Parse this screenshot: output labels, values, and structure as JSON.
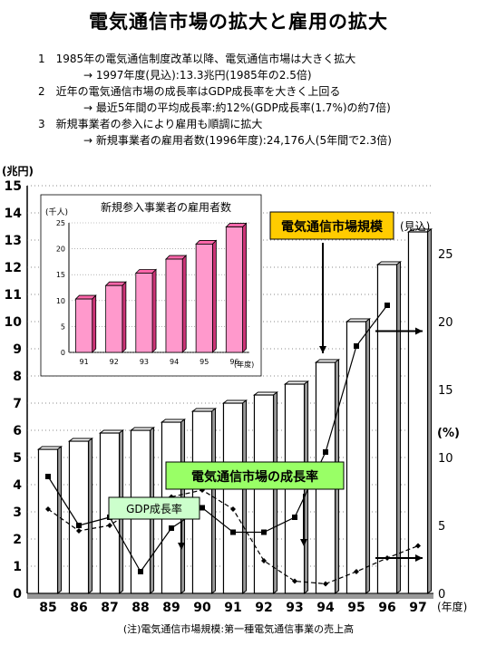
{
  "title": "電気通信市場の拡大と雇用の拡大",
  "points": [
    {
      "num": "1",
      "text": "1985年の電気通信制度改革以降、電気通信市場は大きく拡大",
      "sub": "→ 1997年度(見込):13.3兆円(1985年の2.5倍)"
    },
    {
      "num": "2",
      "text": "近年の電気通信市場の成長率はGDP成長率を大きく上回る",
      "sub": "→ 最近5年間の平均成長率:約12%(GDP成長率(1.7%)の約7倍)"
    },
    {
      "num": "3",
      "text": "新規事業者の参入により雇用も順調に拡大",
      "sub": "→ 新規事業者の雇用者数(1996年度):24,176人(5年間で2.3倍)"
    }
  ],
  "note": "(注)電気通信市場規模:第一種電気通信事業の売上高",
  "colors": {
    "market_bar": "#ffffff",
    "inset_bar": "#ff99cc",
    "market_label_bg": "#ffcc00",
    "growth_label_bg": "#99ff66",
    "gdp_label_bg": "#ccffcc"
  },
  "chart_data": {
    "type": "bar+line",
    "categories": [
      "85",
      "86",
      "87",
      "88",
      "89",
      "90",
      "91",
      "92",
      "93",
      "94",
      "95",
      "96",
      "97"
    ],
    "ylabel_left": "(兆円)",
    "ylabel_right": "(%)",
    "xlabel": "(年度)",
    "ylim_left": [
      0,
      15
    ],
    "ylim_right": [
      0,
      30
    ],
    "left_ticks": [
      "0",
      "1",
      "2",
      "3",
      "4",
      "5",
      "6",
      "7",
      "8",
      "9",
      "10",
      "11",
      "12",
      "13",
      "14",
      "15"
    ],
    "right_ticks": [
      "0",
      "5",
      "10",
      "15",
      "20",
      "25"
    ],
    "market_size": {
      "name": "電気通信市場規模",
      "values": [
        5.3,
        5.6,
        5.9,
        6.0,
        6.3,
        6.7,
        7.0,
        7.3,
        7.7,
        8.5,
        10.0,
        12.1,
        13.3
      ],
      "annotation_97": "(見込)"
    },
    "market_growth": {
      "name": "電気通信市場の成長率",
      "values": [
        8.6,
        5.0,
        5.6,
        1.6,
        4.8,
        6.3,
        4.5,
        4.5,
        5.6,
        10.4,
        18.2,
        21.2
      ]
    },
    "gdp_growth": {
      "name": "GDP成長率",
      "values": [
        6.2,
        4.6,
        5.0,
        6.5,
        7.1,
        7.6,
        6.2,
        2.4,
        0.9,
        0.7,
        1.6,
        2.6,
        3.5
      ]
    },
    "inset": {
      "type": "bar",
      "title": "新規参入事業者の雇用者数",
      "ylabel": "(千人)",
      "xlabel": "(年度)",
      "categories": [
        "91",
        "92",
        "93",
        "94",
        "95",
        "96"
      ],
      "values": [
        10.3,
        12.9,
        15.3,
        18.0,
        20.9,
        24.2
      ],
      "ylim": [
        0,
        25
      ],
      "ticks": [
        "0",
        "5",
        "10",
        "15",
        "20",
        "25"
      ]
    }
  }
}
